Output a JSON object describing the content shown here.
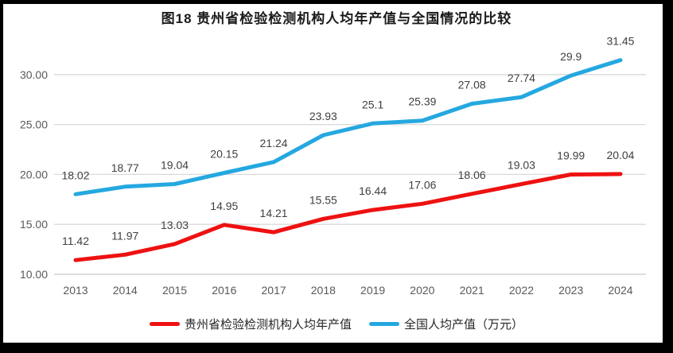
{
  "chart_data": {
    "type": "line",
    "title": "图18  贵州省检验检测机构人均年产值与全国情况的比较",
    "categories": [
      "2013",
      "2014",
      "2015",
      "2016",
      "2017",
      "2018",
      "2019",
      "2020",
      "2021",
      "2022",
      "2023",
      "2024"
    ],
    "series": [
      {
        "name": "贵州省检验检测机构人均年产值",
        "color": "#ee1111",
        "values": [
          11.42,
          11.97,
          13.03,
          14.95,
          14.21,
          15.55,
          16.44,
          17.06,
          18.06,
          19.03,
          19.99,
          20.04
        ],
        "labels": [
          "11.42",
          "11.97",
          "13.03",
          "14.95",
          "14.21",
          "15.55",
          "16.44",
          "17.06",
          "18.06",
          "19.03",
          "19.99",
          "20.04"
        ]
      },
      {
        "name": "全国人均产值（万元）",
        "color": "#25a8e0",
        "values": [
          18.02,
          18.77,
          19.04,
          20.15,
          21.24,
          23.93,
          25.1,
          25.39,
          27.08,
          27.74,
          29.9,
          31.45
        ],
        "labels": [
          "18.02",
          "18.77",
          "19.04",
          "20.15",
          "21.24",
          "23.93",
          "25.1",
          "25.39",
          "27.08",
          "27.74",
          "29.9",
          "31.45"
        ]
      }
    ],
    "xlabel": "",
    "ylabel": "",
    "ylim": [
      10,
      30
    ],
    "yticks": [
      "10.00",
      "15.00",
      "20.00",
      "25.00",
      "30.00"
    ],
    "grid": true,
    "legend_position": "bottom",
    "colors": {
      "guizhou_line": "#ee1111",
      "national_line": "#25a8e0",
      "gridline": "#d9d9d9",
      "axis_line": "#c8c8c8",
      "tick_text": "#595959",
      "data_label_text": "#3f3f3f",
      "title_text": "#1a1a1a",
      "frame_border": "#000000",
      "background": "#ffffff"
    }
  }
}
